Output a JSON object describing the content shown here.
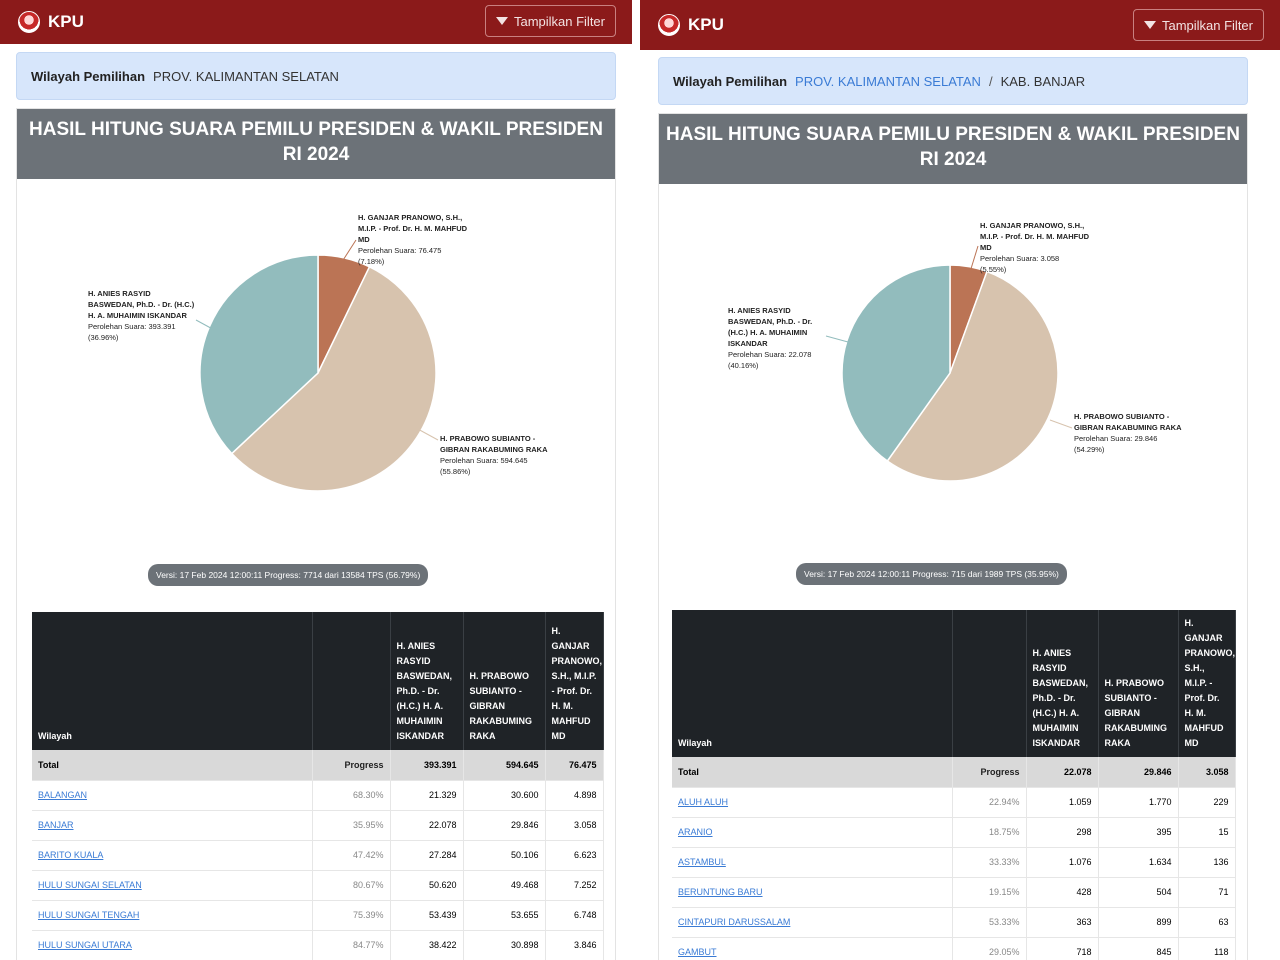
{
  "brand": "KPU",
  "filter_label": "Tampilkan Filter",
  "left": {
    "crumb": {
      "label": "Wilayah Pemilihan",
      "items": [
        {
          "text": "PROV. KALIMANTAN SELATAN",
          "link": false
        }
      ]
    },
    "title": "HASIL HITUNG SUARA PEMILU PRESIDEN & WAKIL PRESIDEN RI 2024",
    "chart_data": {
      "type": "pie",
      "slices": [
        {
          "label": "H. GANJAR PRANOWO, S.H., M.I.P. - Prof. Dr. H. M. MAHFUD MD",
          "votes_text": "Perolehan Suara: 76.475",
          "pct_text": "(7.18%)",
          "value": 76475,
          "percent": 7.18,
          "color": "#bb7455"
        },
        {
          "label": "H. PRABOWO SUBIANTO - GIBRAN RAKABUMING RAKA",
          "votes_text": "Perolehan Suara: 594.645",
          "pct_text": "(55.86%)",
          "value": 594645,
          "percent": 55.86,
          "color": "#d7c3ae"
        },
        {
          "label": "H. ANIES RASYID BASWEDAN, Ph.D. - Dr. (H.C.) H. A. MUHAIMIN ISKANDAR",
          "votes_text": "Perolehan Suara: 393.391",
          "pct_text": "(36.96%)",
          "value": 393391,
          "percent": 36.96,
          "color": "#92bcbd"
        }
      ]
    },
    "version": "Versi: 17 Feb 2024 12:00:11 Progress: 7714 dari 13584 TPS (56.79%)",
    "table": {
      "headers": [
        "Wilayah",
        "Progress",
        "H. ANIES RASYID BASWEDAN, Ph.D. - Dr. (H.C.) H. A. MUHAIMIN ISKANDAR",
        "H. PRABOWO SUBIANTO - GIBRAN RAKABUMING RAKA",
        "H. GANJAR PRANOWO, S.H., M.I.P. - Prof. Dr. H. M. MAHFUD MD"
      ],
      "total": [
        "Total",
        "Progress",
        "393.391",
        "594.645",
        "76.475"
      ],
      "rows": [
        [
          "BALANGAN",
          "68.30%",
          "21.329",
          "30.600",
          "4.898"
        ],
        [
          "BANJAR",
          "35.95%",
          "22.078",
          "29.846",
          "3.058"
        ],
        [
          "BARITO KUALA",
          "47.42%",
          "27.284",
          "50.106",
          "6.623"
        ],
        [
          "HULU SUNGAI SELATAN",
          "80.67%",
          "50.620",
          "49.468",
          "7.252"
        ],
        [
          "HULU SUNGAI TENGAH",
          "75.39%",
          "53.439",
          "53.655",
          "6.748"
        ],
        [
          "HULU SUNGAI UTARA",
          "84.77%",
          "38.422",
          "30.898",
          "3.846"
        ]
      ]
    }
  },
  "right": {
    "crumb": {
      "label": "Wilayah Pemilihan",
      "items": [
        {
          "text": "PROV. KALIMANTAN SELATAN",
          "link": true
        },
        {
          "text": "KAB. BANJAR",
          "link": false
        }
      ]
    },
    "title": "HASIL HITUNG SUARA PEMILU PRESIDEN & WAKIL PRESIDEN RI 2024",
    "chart_data": {
      "type": "pie",
      "slices": [
        {
          "label": "H. GANJAR PRANOWO, S.H., M.I.P. - Prof. Dr. H. M. MAHFUD MD",
          "votes_text": "Perolehan Suara: 3.058",
          "pct_text": "(5.55%)",
          "value": 3058,
          "percent": 5.55,
          "color": "#bb7455"
        },
        {
          "label": "H. PRABOWO SUBIANTO - GIBRAN RAKABUMING RAKA",
          "votes_text": "Perolehan Suara: 29.846",
          "pct_text": "(54.29%)",
          "value": 29846,
          "percent": 54.29,
          "color": "#d7c3ae"
        },
        {
          "label": "H. ANIES RASYID BASWEDAN, Ph.D. - Dr. (H.C.) H. A. MUHAIMIN ISKANDAR",
          "votes_text": "Perolehan Suara: 22.078",
          "pct_text": "(40.16%)",
          "value": 22078,
          "percent": 40.16,
          "color": "#92bcbd"
        }
      ]
    },
    "version": "Versi: 17 Feb 2024 12:00:11 Progress: 715 dari 1989 TPS (35.95%)",
    "table": {
      "headers": [
        "Wilayah",
        "Progress",
        "H. ANIES RASYID BASWEDAN, Ph.D. - Dr. (H.C.) H. A. MUHAIMIN ISKANDAR",
        "H. PRABOWO SUBIANTO - GIBRAN RAKABUMING RAKA",
        "H. GANJAR PRANOWO, S.H., M.I.P. - Prof. Dr. H. M. MAHFUD MD"
      ],
      "total": [
        "Total",
        "Progress",
        "22.078",
        "29.846",
        "3.058"
      ],
      "rows": [
        [
          "ALUH ALUH",
          "22.94%",
          "1.059",
          "1.770",
          "229"
        ],
        [
          "ARANIO",
          "18.75%",
          "298",
          "395",
          "15"
        ],
        [
          "ASTAMBUL",
          "33.33%",
          "1.076",
          "1.634",
          "136"
        ],
        [
          "BERUNTUNG BARU",
          "19.15%",
          "428",
          "504",
          "71"
        ],
        [
          "CINTAPURI DARUSSALAM",
          "53.33%",
          "363",
          "899",
          "63"
        ],
        [
          "GAMBUT",
          "29.05%",
          "718",
          "845",
          "118"
        ]
      ]
    }
  }
}
